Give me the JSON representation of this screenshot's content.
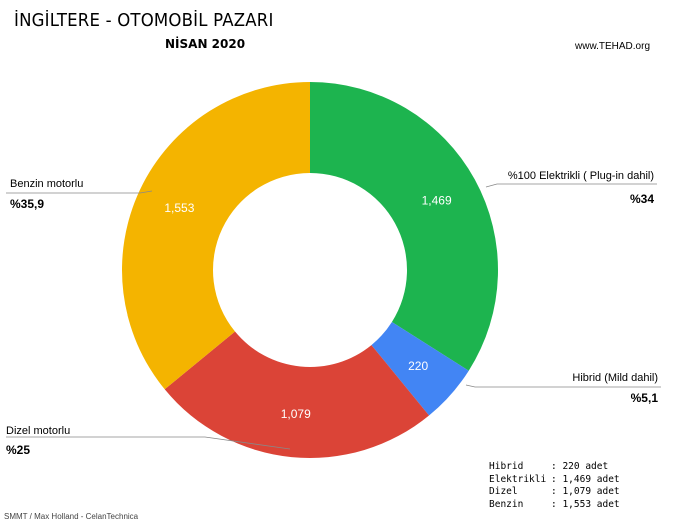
{
  "title": "İNGİLTERE - OTOMOBİL PAZARI",
  "subtitle": "NİSAN 2020",
  "site": "www.TEHAD.org",
  "source": "SMMT / Max Holland - CelanTechnica",
  "colors": {
    "elektrikli": "#1db44f",
    "hibrid": "#4285f4",
    "dizel": "#db4437",
    "benzin": "#f4b400"
  },
  "chart_data": {
    "type": "pie",
    "title": "İNGİLTERE - OTOMOBİL PAZARI",
    "subtitle": "NİSAN 2020",
    "slices": [
      {
        "key": "elektrikli",
        "label": "%100 Elektrikli ( Plug-in dahil)",
        "value": 1469,
        "value_label": "1,469",
        "percent_label": "%34"
      },
      {
        "key": "hibrid",
        "label": "Hibrid (Mild dahil)",
        "value": 220,
        "value_label": "220",
        "percent_label": "%5,1"
      },
      {
        "key": "dizel",
        "label": "Dizel motorlu",
        "value": 1079,
        "value_label": "1,079",
        "percent_label": "%25"
      },
      {
        "key": "benzin",
        "label": "Benzin motorlu",
        "value": 1553,
        "value_label": "1,553",
        "percent_label": "%35,9"
      }
    ]
  },
  "legend_table": [
    {
      "name": "Hibrid",
      "value": ": 220 adet"
    },
    {
      "name": "Elektrikli",
      "value": ": 1,469 adet"
    },
    {
      "name": "Dizel",
      "value": ": 1,079 adet"
    },
    {
      "name": "Benzin",
      "value": ": 1,553 adet"
    }
  ]
}
